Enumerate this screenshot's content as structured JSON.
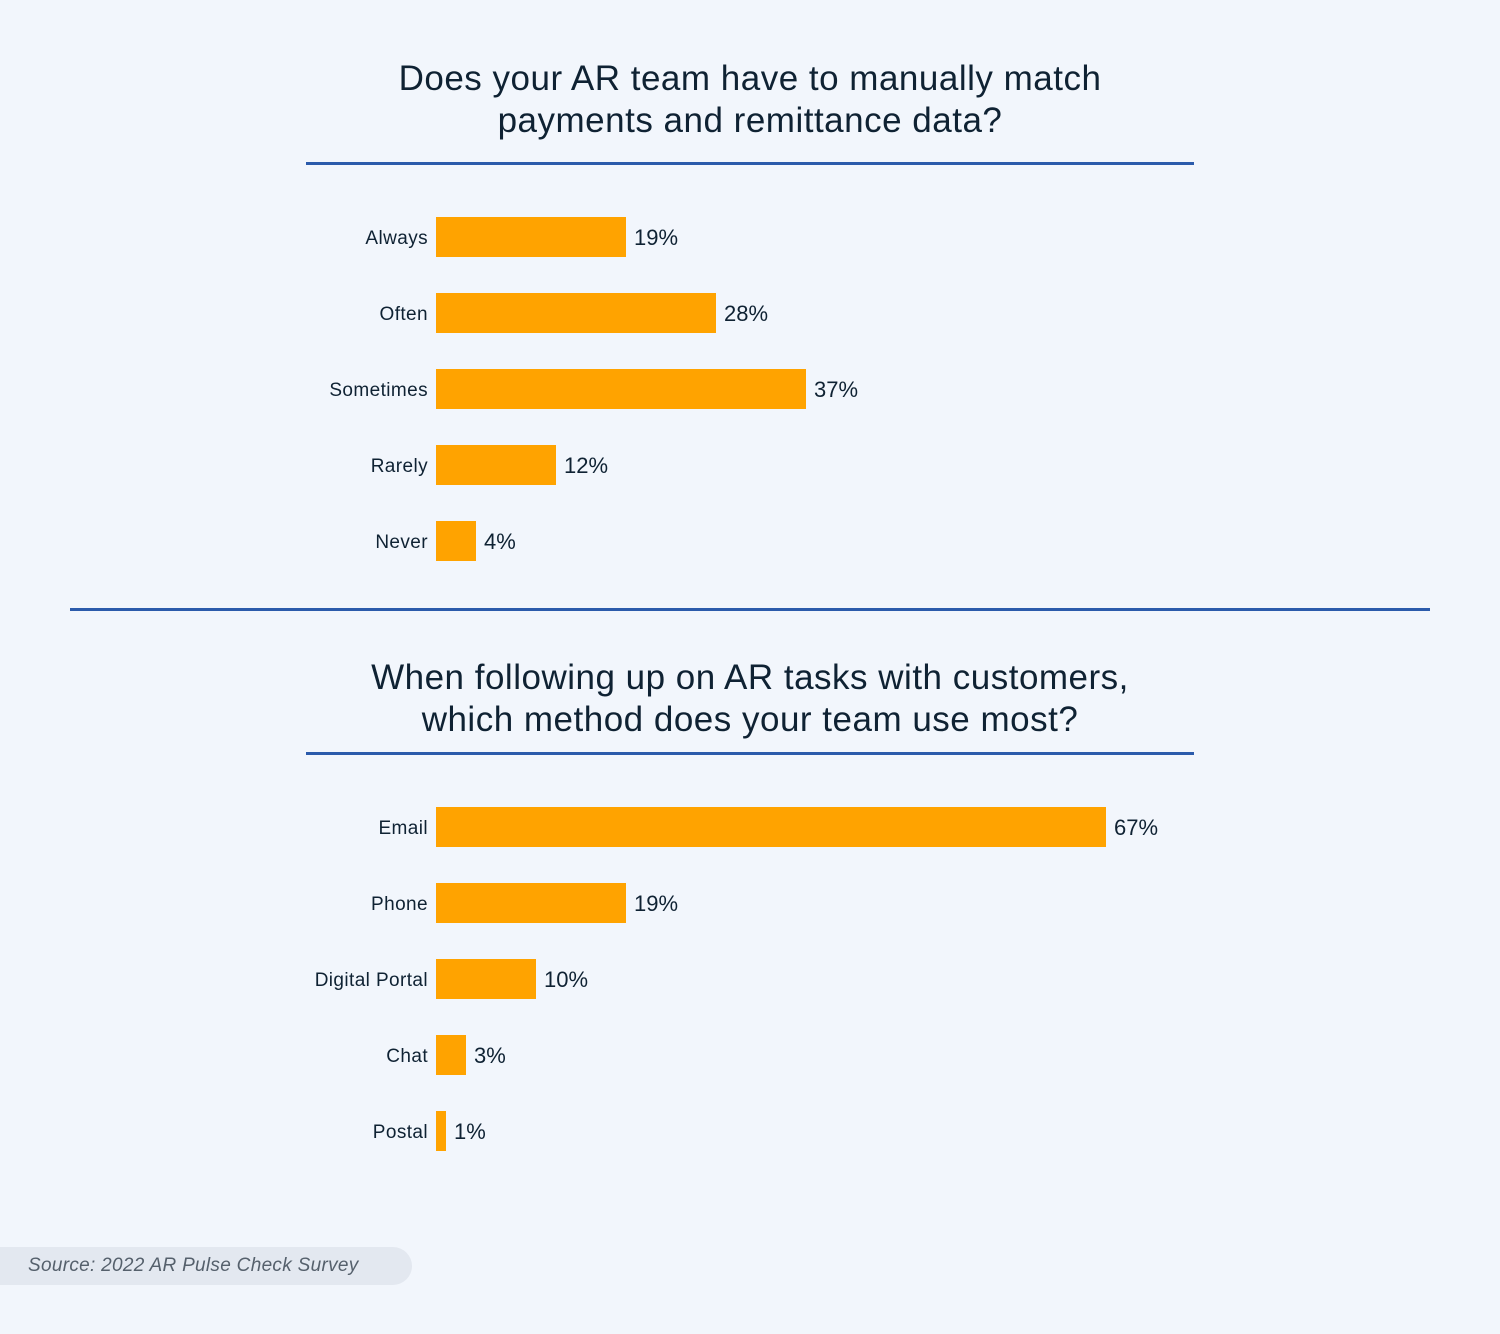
{
  "colors": {
    "background": "#f2f6fc",
    "bar": "#ffa300",
    "accent_line": "#2b5bab",
    "text": "#0f2233",
    "source_pill": "#e3e8f0"
  },
  "chart_data": [
    {
      "type": "bar",
      "orientation": "horizontal",
      "title_line1": "Does your AR team have to manually match",
      "title_line2": "payments and remittance data?",
      "categories": [
        "Always",
        "Often",
        "Sometimes",
        "Rarely",
        "Never"
      ],
      "values": [
        19,
        28,
        37,
        12,
        4
      ],
      "value_labels": [
        "19%",
        "28%",
        "37%",
        "12%",
        "4%"
      ],
      "unit": "%",
      "xlim": [
        0,
        67
      ],
      "grid": false,
      "xlabel": "",
      "ylabel": ""
    },
    {
      "type": "bar",
      "orientation": "horizontal",
      "title_line1": "When following up on AR tasks with customers,",
      "title_line2": "which method does your team use most?",
      "categories": [
        "Email",
        "Phone",
        "Digital Portal",
        "Chat",
        "Postal"
      ],
      "values": [
        67,
        19,
        10,
        3,
        1
      ],
      "value_labels": [
        "67%",
        "19%",
        "10%",
        "3%",
        "1%"
      ],
      "unit": "%",
      "xlim": [
        0,
        67
      ],
      "grid": false,
      "xlabel": "",
      "ylabel": ""
    }
  ],
  "source": "Source: 2022 AR Pulse Check Survey"
}
